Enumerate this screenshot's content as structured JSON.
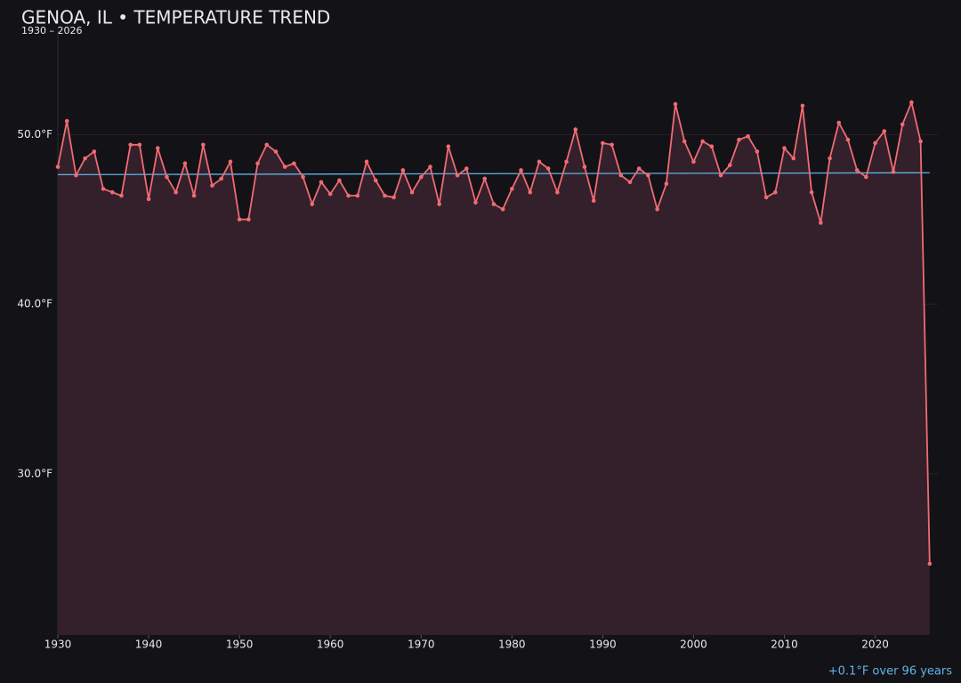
{
  "chart_data": {
    "type": "line",
    "title": "GENOA, IL • TEMPERATURE TREND",
    "subtitle": "1930 – 2026",
    "annotation": "+0.1°F over 96 years",
    "x": [
      1930,
      1931,
      1932,
      1933,
      1934,
      1935,
      1936,
      1937,
      1938,
      1939,
      1940,
      1941,
      1942,
      1943,
      1944,
      1945,
      1946,
      1947,
      1948,
      1949,
      1950,
      1951,
      1952,
      1953,
      1954,
      1955,
      1956,
      1957,
      1958,
      1959,
      1960,
      1961,
      1962,
      1963,
      1964,
      1965,
      1966,
      1967,
      1968,
      1969,
      1970,
      1971,
      1972,
      1973,
      1974,
      1975,
      1976,
      1977,
      1978,
      1979,
      1980,
      1981,
      1982,
      1983,
      1984,
      1985,
      1986,
      1987,
      1988,
      1989,
      1990,
      1991,
      1992,
      1993,
      1994,
      1995,
      1996,
      1997,
      1998,
      1999,
      2000,
      2001,
      2002,
      2003,
      2004,
      2005,
      2006,
      2007,
      2008,
      2009,
      2010,
      2011,
      2012,
      2013,
      2014,
      2015,
      2016,
      2017,
      2018,
      2019,
      2020,
      2021,
      2022,
      2023,
      2024,
      2025,
      2026
    ],
    "series": [
      {
        "color": "#f06b73",
        "fill": "#33202a",
        "values": [
          48.1,
          50.8,
          47.6,
          48.6,
          49.0,
          46.8,
          46.6,
          46.4,
          49.4,
          49.4,
          46.2,
          49.2,
          47.5,
          46.6,
          48.3,
          46.4,
          49.4,
          47.0,
          47.4,
          48.4,
          45.0,
          45.0,
          48.3,
          49.4,
          49.0,
          48.1,
          48.3,
          47.5,
          45.9,
          47.2,
          46.5,
          47.3,
          46.4,
          46.4,
          48.4,
          47.3,
          46.4,
          46.3,
          47.9,
          46.6,
          47.5,
          48.1,
          45.9,
          49.3,
          47.6,
          48.0,
          46.0,
          47.4,
          45.9,
          45.6,
          46.8,
          47.9,
          46.6,
          48.4,
          48.0,
          46.6,
          48.4,
          50.3,
          48.1,
          46.1,
          49.5,
          49.4,
          47.6,
          47.2,
          48.0,
          47.6,
          45.6,
          47.1,
          51.8,
          49.6,
          48.4,
          49.6,
          49.3,
          47.6,
          48.2,
          49.7,
          49.9,
          49.0,
          46.3,
          46.6,
          49.2,
          48.6,
          51.7,
          46.6,
          44.8,
          48.6,
          50.7,
          49.7,
          47.9,
          47.5,
          49.5,
          50.2,
          47.8,
          50.6,
          51.9,
          49.6,
          24.7
        ]
      }
    ],
    "trend": {
      "color": "#5fb4e8",
      "x": [
        1930,
        2026
      ],
      "values": [
        47.64,
        47.75
      ]
    },
    "xlim": [
      1930,
      2026.9
    ],
    "ylim": [
      20.5,
      56.1
    ],
    "xticks": [
      1930,
      1940,
      1950,
      1960,
      1970,
      1980,
      1990,
      2000,
      2010,
      2020
    ],
    "yticks": [
      {
        "value": 30,
        "label": "30.0°F"
      },
      {
        "value": 40,
        "label": "40.0°F"
      },
      {
        "value": 50,
        "label": "50.0°F"
      }
    ],
    "grid": true
  }
}
